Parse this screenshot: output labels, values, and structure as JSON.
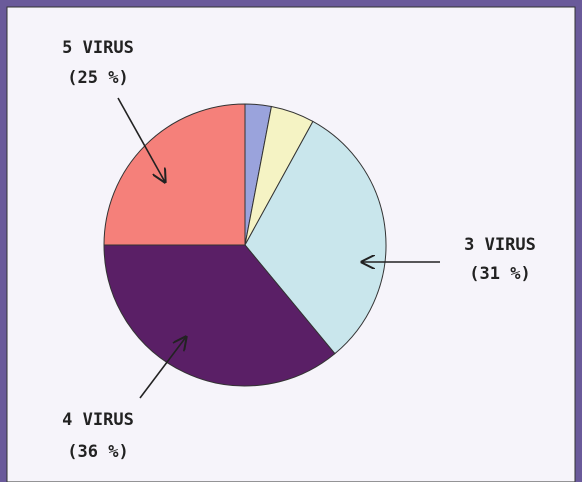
{
  "chart_data": {
    "type": "pie",
    "categories": [
      null,
      null,
      "3 VIRUS",
      "4 VIRUS",
      "5 VIRUS"
    ],
    "values": [
      3,
      5,
      31,
      36,
      25
    ],
    "value_labels": [
      null,
      null,
      "(31 %)",
      "(36 %)",
      "(25 %)"
    ],
    "colors": [
      "#9aa3dc",
      "#f5f3c4",
      "#c9e6ec",
      "#5a1f66",
      "#f5807a"
    ]
  }
}
